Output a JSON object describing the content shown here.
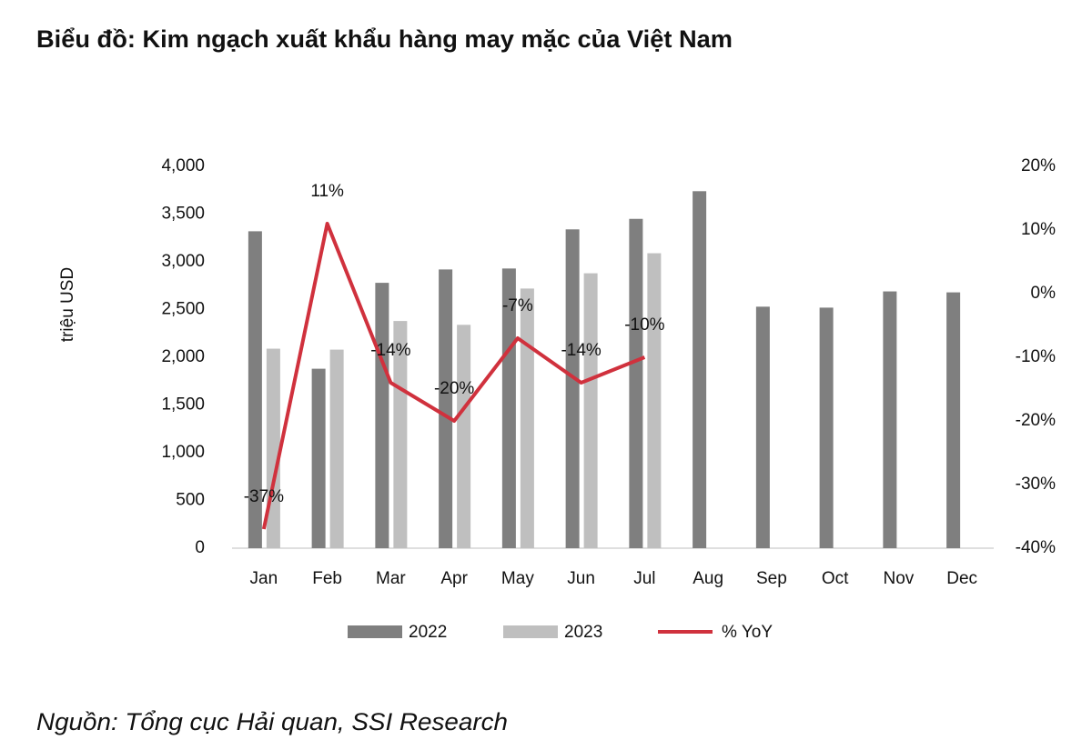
{
  "chart_data": {
    "type": "bar",
    "title": "Biểu đồ: Kim ngạch xuất khẩu hàng may mặc của Việt Nam",
    "source": "Nguồn: Tổng cục Hải quan, SSI Research",
    "y_label": "triệu USD",
    "categories": [
      "Jan",
      "Feb",
      "Mar",
      "Apr",
      "May",
      "Jun",
      "Jul",
      "Aug",
      "Sep",
      "Oct",
      "Nov",
      "Dec"
    ],
    "series": [
      {
        "name": "2022",
        "type": "bar",
        "color": "#7f7f7f",
        "values": [
          3320,
          1880,
          2780,
          2920,
          2930,
          3340,
          3450,
          3740,
          2530,
          2520,
          2690,
          2680
        ]
      },
      {
        "name": "2023",
        "type": "bar",
        "color": "#bfbfbf",
        "values": [
          2090,
          2080,
          2380,
          2340,
          2720,
          2880,
          3090,
          null,
          null,
          null,
          null,
          null
        ]
      },
      {
        "name": "% YoY",
        "type": "line",
        "axis": "y2",
        "color": "#d0313d",
        "values": [
          -37,
          11,
          -14,
          -20,
          -7,
          -14,
          -10,
          null,
          null,
          null,
          null,
          null
        ],
        "value_labels": [
          "-37%",
          "11%",
          "-14%",
          "-20%",
          "-7%",
          "-14%",
          "-10%",
          null,
          null,
          null,
          null,
          null
        ]
      }
    ],
    "ylim": [
      0,
      4000
    ],
    "yticks": [
      0,
      500,
      {
        "value": 1000,
        "label": "1,000"
      },
      {
        "value": 1500,
        "label": "1,500"
      },
      {
        "value": 2000,
        "label": "2,000"
      },
      {
        "value": 2500,
        "label": "2,500"
      },
      {
        "value": 3000,
        "label": "3,000"
      },
      {
        "value": 3500,
        "label": "3,500"
      },
      {
        "value": 4000,
        "label": "4,000"
      }
    ],
    "y2lim": [
      -40,
      20
    ],
    "y2ticks": [
      {
        "value": -40,
        "label": "-40%"
      },
      {
        "value": -30,
        "label": "-30%"
      },
      {
        "value": -20,
        "label": "-20%"
      },
      {
        "value": -10,
        "label": "-10%"
      },
      {
        "value": 0,
        "label": "0%"
      },
      {
        "value": 10,
        "label": "10%"
      },
      {
        "value": 20,
        "label": "20%"
      }
    ],
    "legend": "bottom"
  }
}
